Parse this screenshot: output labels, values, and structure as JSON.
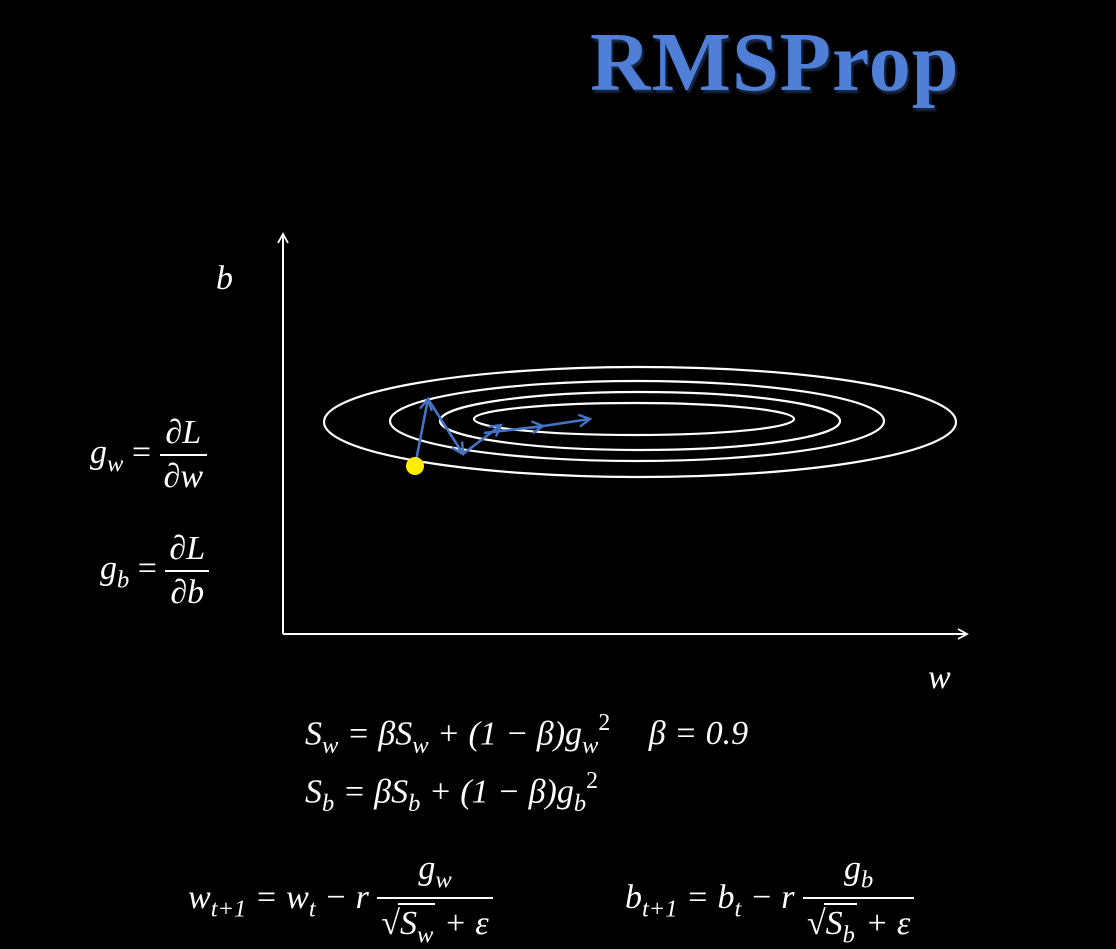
{
  "title": "RMSProp",
  "axes": {
    "x_label": "w",
    "y_label": "b"
  },
  "gradients": {
    "gw_lhs": "g",
    "gw_sub": "w",
    "gw_eq": "=",
    "gw_num": "∂L",
    "gw_den": "∂w",
    "gb_lhs": "g",
    "gb_sub": "b",
    "gb_eq": "=",
    "gb_num": "∂L",
    "gb_den": "∂b"
  },
  "updates": {
    "sw_line": {
      "lhs": "S",
      "lhs_sub": "w",
      "mid": " = βS",
      "mid_sub": "w",
      "rest": " + (1 − β)g",
      "g_sub": "w",
      "pow": "2",
      "beta": "β = 0.9"
    },
    "sb_line": {
      "lhs": "S",
      "lhs_sub": "b",
      "mid": " = βS",
      "mid_sub": "b",
      "rest": " + (1 − β)g",
      "g_sub": "b",
      "pow": "2"
    }
  },
  "steps": {
    "w": {
      "lhs": "w",
      "lhs_sub": "t+1",
      "mid": " = w",
      "mid_sub": "t",
      "minus": " − r",
      "num": "g",
      "num_sub": "w",
      "den_s": "S",
      "den_sub": "w",
      "den_rest": " + ε"
    },
    "b": {
      "lhs": "b",
      "lhs_sub": "t+1",
      "mid": " = b",
      "mid_sub": "t",
      "minus": " − r",
      "num": "g",
      "num_sub": "b",
      "den_s": "S",
      "den_sub": "b",
      "den_rest": " + ε"
    }
  },
  "colors": {
    "title": "#4f7fd6",
    "path": "#4472c4",
    "start_point": "#ffee00",
    "contours": "#ffffff",
    "axes": "#ffffff"
  }
}
